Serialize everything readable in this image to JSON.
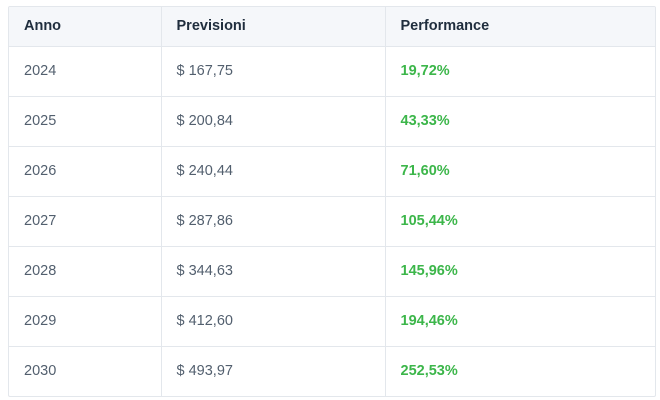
{
  "table": {
    "headers": [
      "Anno",
      "Previsioni",
      "Performance"
    ],
    "rows": [
      {
        "year": "2024",
        "forecast": "$ 167,75",
        "performance": "19,72%"
      },
      {
        "year": "2025",
        "forecast": "$ 200,84",
        "performance": "43,33%"
      },
      {
        "year": "2026",
        "forecast": "$ 240,44",
        "performance": "71,60%"
      },
      {
        "year": "2027",
        "forecast": "$ 287,86",
        "performance": "105,44%"
      },
      {
        "year": "2028",
        "forecast": "$ 344,63",
        "performance": "145,96%"
      },
      {
        "year": "2029",
        "forecast": "$ 412,60",
        "performance": "194,46%"
      },
      {
        "year": "2030",
        "forecast": "$ 493,97",
        "performance": "252,53%"
      }
    ]
  },
  "colors": {
    "performance": "#3cb64a",
    "header_bg": "#f5f7fa",
    "border": "#e3e7ec"
  }
}
